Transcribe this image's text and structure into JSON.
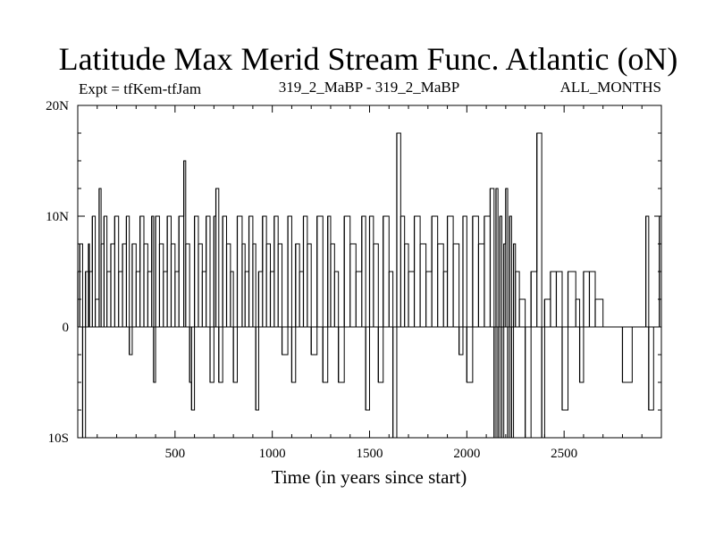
{
  "chart_data": {
    "type": "line",
    "title": "Latitude Max Merid Stream Func. Atlantic (oN)",
    "subtitle_left": "Expt = tfKem-tfJam",
    "subtitle_center": "319_2_MaBP - 319_2_MaBP",
    "subtitle_right": "ALL_MONTHS",
    "xlabel": "Time (in years since start)",
    "ylabel": "",
    "xlim": [
      0,
      3000
    ],
    "ylim": [
      -10,
      20
    ],
    "x_ticks": [
      500,
      1000,
      1500,
      2000,
      2500
    ],
    "x_tick_labels": [
      "500",
      "1000",
      "1500",
      "2000",
      "2500"
    ],
    "y_ticks": [
      -10,
      0,
      10,
      20
    ],
    "y_tick_labels": [
      "10S",
      "0",
      "10N",
      "20N"
    ],
    "grid": false,
    "line_color": "#000000",
    "series": [
      {
        "values_note_free": true,
        "x": [
          0,
          10,
          25,
          40,
          55,
          60,
          75,
          90,
          110,
          120,
          135,
          150,
          170,
          190,
          210,
          230,
          250,
          265,
          280,
          300,
          320,
          340,
          360,
          380,
          390,
          400,
          420,
          440,
          460,
          480,
          500,
          520,
          545,
          555,
          575,
          585,
          600,
          620,
          640,
          660,
          680,
          700,
          710,
          725,
          745,
          765,
          785,
          800,
          820,
          845,
          860,
          880,
          900,
          915,
          930,
          950,
          970,
          990,
          1010,
          1030,
          1050,
          1080,
          1100,
          1120,
          1140,
          1160,
          1180,
          1200,
          1230,
          1260,
          1285,
          1300,
          1320,
          1340,
          1370,
          1400,
          1430,
          1460,
          1480,
          1500,
          1520,
          1545,
          1570,
          1600,
          1620,
          1640,
          1660,
          1680,
          1700,
          1730,
          1760,
          1790,
          1820,
          1850,
          1880,
          1900,
          1930,
          1960,
          1980,
          2000,
          2030,
          2060,
          2090,
          2120,
          2140,
          2150,
          2160,
          2170,
          2180,
          2190,
          2200,
          2210,
          2220,
          2230,
          2240,
          2250,
          2270,
          2300,
          2330,
          2360,
          2385,
          2400,
          2430,
          2460,
          2490,
          2520,
          2560,
          2580,
          2600,
          2630,
          2660,
          2700,
          2750,
          2800,
          2850,
          2900,
          2920,
          2935,
          2960,
          2990
        ],
        "y": [
          5,
          7.5,
          -10,
          5,
          7.5,
          5,
          10,
          2.5,
          12.5,
          7.5,
          10,
          5,
          7.5,
          10,
          5,
          7.5,
          10,
          -2.5,
          7.5,
          5,
          10,
          7.5,
          5,
          10,
          -5,
          10,
          7.5,
          5,
          10,
          7.5,
          5,
          10,
          15,
          7.5,
          -5,
          -7.5,
          10,
          7.5,
          5,
          10,
          -5,
          10,
          12.5,
          -5,
          10,
          7.5,
          5,
          -5,
          10,
          7.5,
          5,
          10,
          7.5,
          -7.5,
          5,
          10,
          7.5,
          5,
          10,
          7.5,
          -2.5,
          10,
          -5,
          7.5,
          5,
          10,
          7.5,
          -2.5,
          10,
          -5,
          10,
          7.5,
          5,
          -5,
          10,
          7.5,
          5,
          10,
          -7.5,
          10,
          7.5,
          -5,
          10,
          5,
          -10,
          17.5,
          10,
          7.5,
          5,
          10,
          7.5,
          5,
          10,
          7.5,
          5,
          10,
          7.5,
          -2.5,
          10,
          -5,
          10,
          7.5,
          10,
          12.5,
          -10,
          12.5,
          -10,
          10,
          -10,
          7.5,
          12.5,
          -10,
          10,
          -10,
          7.5,
          5,
          2.5,
          -10,
          5,
          17.5,
          -10,
          2.5,
          5,
          5,
          -7.5,
          5,
          2.5,
          -5,
          5,
          5,
          2.5,
          0,
          0,
          -5,
          0,
          0,
          10,
          -7.5,
          0,
          10
        ]
      }
    ]
  }
}
